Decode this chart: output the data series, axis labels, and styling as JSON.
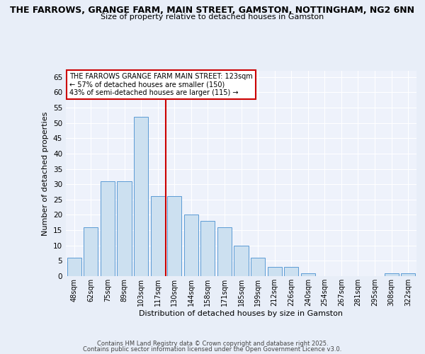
{
  "title_line1": "THE FARROWS, GRANGE FARM, MAIN STREET, GAMSTON, NOTTINGHAM, NG2 6NN",
  "title_line2": "Size of property relative to detached houses in Gamston",
  "categories": [
    "48sqm",
    "62sqm",
    "75sqm",
    "89sqm",
    "103sqm",
    "117sqm",
    "130sqm",
    "144sqm",
    "158sqm",
    "171sqm",
    "185sqm",
    "199sqm",
    "212sqm",
    "226sqm",
    "240sqm",
    "254sqm",
    "267sqm",
    "281sqm",
    "295sqm",
    "308sqm",
    "322sqm"
  ],
  "values": [
    6,
    16,
    31,
    31,
    52,
    26,
    26,
    20,
    18,
    16,
    10,
    6,
    3,
    3,
    1,
    0,
    0,
    0,
    0,
    1,
    1
  ],
  "bar_color": "#cce0f0",
  "bar_edge_color": "#5b9bd5",
  "vline_x": 5.5,
  "vline_color": "#cc0000",
  "xlabel": "Distribution of detached houses by size in Gamston",
  "ylabel": "Number of detached properties",
  "ylim": [
    0,
    67
  ],
  "yticks": [
    0,
    5,
    10,
    15,
    20,
    25,
    30,
    35,
    40,
    45,
    50,
    55,
    60,
    65
  ],
  "annotation_box_text": "THE FARROWS GRANGE FARM MAIN STREET: 123sqm\n← 57% of detached houses are smaller (150)\n43% of semi-detached houses are larger (115) →",
  "annotation_box_color": "#cc0000",
  "annotation_box_facecolor": "#ffffff",
  "footer_line1": "Contains HM Land Registry data © Crown copyright and database right 2025.",
  "footer_line2": "Contains public sector information licensed under the Open Government Licence v3.0.",
  "background_color": "#e8eef8",
  "plot_bg_color": "#eef2fb"
}
